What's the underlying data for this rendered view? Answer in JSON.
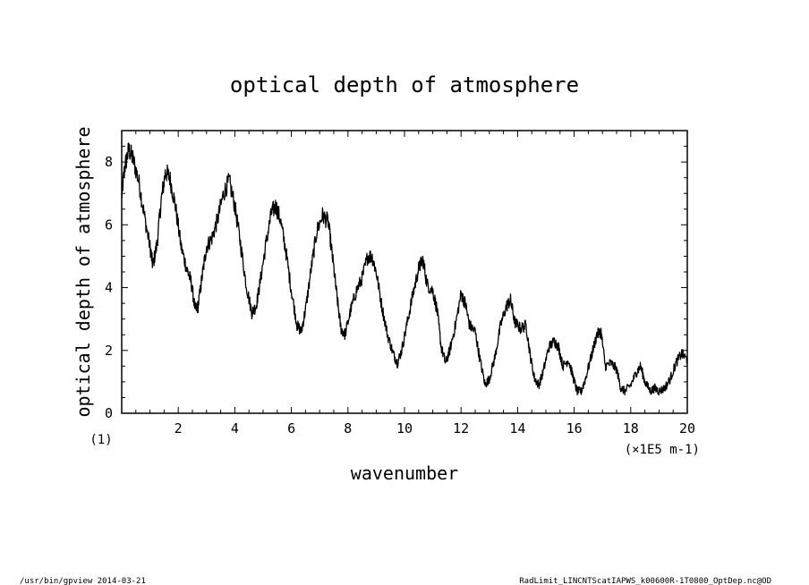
{
  "footer": {
    "left": "/usr/bin/gpview   2014-03-21",
    "right": "RadLimit_LINCNTScatIAPWS_k00600R-1T0800_OptDep.nc@OD"
  },
  "chart_data": {
    "type": "line",
    "title": "optical depth of atmosphere",
    "xlabel": "wavenumber",
    "ylabel": "optical depth of atmosphere",
    "x_unit_note": "(×1E5 m-1)",
    "y_unit_note": "(1)",
    "xlim": [
      0,
      20
    ],
    "ylim": [
      0,
      9
    ],
    "x_ticks": [
      2,
      4,
      6,
      8,
      10,
      12,
      14,
      16,
      18,
      20
    ],
    "y_ticks": [
      0,
      2,
      4,
      6,
      8
    ],
    "grid": false,
    "series": [
      {
        "color": "#000000",
        "points": [
          [
            0.0,
            6.9
          ],
          [
            0.1,
            7.8
          ],
          [
            0.25,
            8.4
          ],
          [
            0.4,
            8.1
          ],
          [
            0.6,
            7.4
          ],
          [
            0.8,
            6.3
          ],
          [
            1.0,
            5.3
          ],
          [
            1.1,
            4.7
          ],
          [
            1.25,
            5.4
          ],
          [
            1.4,
            6.8
          ],
          [
            1.55,
            7.7
          ],
          [
            1.7,
            7.5
          ],
          [
            1.9,
            6.6
          ],
          [
            2.1,
            5.3
          ],
          [
            2.3,
            4.6
          ],
          [
            2.45,
            4.2
          ],
          [
            2.6,
            3.3
          ],
          [
            2.7,
            3.4
          ],
          [
            2.85,
            4.4
          ],
          [
            3.0,
            5.3
          ],
          [
            3.2,
            5.6
          ],
          [
            3.4,
            6.2
          ],
          [
            3.6,
            7.0
          ],
          [
            3.8,
            7.4
          ],
          [
            4.0,
            6.6
          ],
          [
            4.2,
            5.4
          ],
          [
            4.4,
            4.1
          ],
          [
            4.6,
            3.2
          ],
          [
            4.75,
            3.4
          ],
          [
            4.9,
            4.2
          ],
          [
            5.1,
            5.4
          ],
          [
            5.3,
            6.4
          ],
          [
            5.45,
            6.6
          ],
          [
            5.6,
            6.2
          ],
          [
            5.8,
            5.2
          ],
          [
            6.0,
            3.9
          ],
          [
            6.2,
            2.8
          ],
          [
            6.35,
            2.6
          ],
          [
            6.5,
            3.3
          ],
          [
            6.7,
            4.6
          ],
          [
            6.9,
            5.8
          ],
          [
            7.1,
            6.3
          ],
          [
            7.3,
            6.1
          ],
          [
            7.45,
            5.0
          ],
          [
            7.6,
            3.8
          ],
          [
            7.75,
            2.7
          ],
          [
            7.9,
            2.5
          ],
          [
            8.1,
            3.3
          ],
          [
            8.3,
            3.9
          ],
          [
            8.5,
            4.3
          ],
          [
            8.7,
            5.0
          ],
          [
            8.85,
            5.0
          ],
          [
            9.0,
            4.5
          ],
          [
            9.2,
            3.4
          ],
          [
            9.4,
            2.5
          ],
          [
            9.6,
            1.9
          ],
          [
            9.75,
            1.6
          ],
          [
            9.9,
            2.0
          ],
          [
            10.1,
            2.9
          ],
          [
            10.3,
            3.8
          ],
          [
            10.5,
            4.6
          ],
          [
            10.65,
            4.9
          ],
          [
            10.8,
            4.1
          ],
          [
            11.0,
            3.9
          ],
          [
            11.15,
            3.3
          ],
          [
            11.3,
            2.1
          ],
          [
            11.45,
            1.6
          ],
          [
            11.6,
            2.0
          ],
          [
            11.8,
            2.8
          ],
          [
            12.0,
            3.8
          ],
          [
            12.15,
            3.5
          ],
          [
            12.3,
            2.8
          ],
          [
            12.5,
            2.6
          ],
          [
            12.65,
            1.8
          ],
          [
            12.85,
            0.9
          ],
          [
            13.0,
            1.1
          ],
          [
            13.2,
            1.8
          ],
          [
            13.4,
            2.8
          ],
          [
            13.6,
            3.4
          ],
          [
            13.75,
            3.6
          ],
          [
            13.9,
            2.9
          ],
          [
            14.1,
            2.7
          ],
          [
            14.3,
            2.8
          ],
          [
            14.45,
            1.8
          ],
          [
            14.6,
            1.1
          ],
          [
            14.75,
            0.9
          ],
          [
            14.9,
            1.3
          ],
          [
            15.1,
            2.1
          ],
          [
            15.3,
            2.3
          ],
          [
            15.45,
            2.1
          ],
          [
            15.6,
            1.5
          ],
          [
            15.8,
            1.7
          ],
          [
            15.95,
            1.2
          ],
          [
            16.1,
            0.7
          ],
          [
            16.25,
            0.7
          ],
          [
            16.4,
            1.1
          ],
          [
            16.6,
            1.8
          ],
          [
            16.8,
            2.5
          ],
          [
            16.95,
            2.6
          ],
          [
            17.1,
            1.5
          ],
          [
            17.3,
            1.6
          ],
          [
            17.5,
            1.4
          ],
          [
            17.65,
            0.8
          ],
          [
            17.8,
            0.7
          ],
          [
            18.0,
            0.9
          ],
          [
            18.2,
            1.3
          ],
          [
            18.35,
            1.5
          ],
          [
            18.5,
            1.0
          ],
          [
            18.7,
            0.7
          ],
          [
            18.85,
            0.8
          ],
          [
            19.0,
            0.7
          ],
          [
            19.2,
            0.8
          ],
          [
            19.4,
            1.1
          ],
          [
            19.6,
            1.6
          ],
          [
            19.8,
            1.9
          ],
          [
            20.0,
            1.7
          ]
        ]
      }
    ]
  }
}
